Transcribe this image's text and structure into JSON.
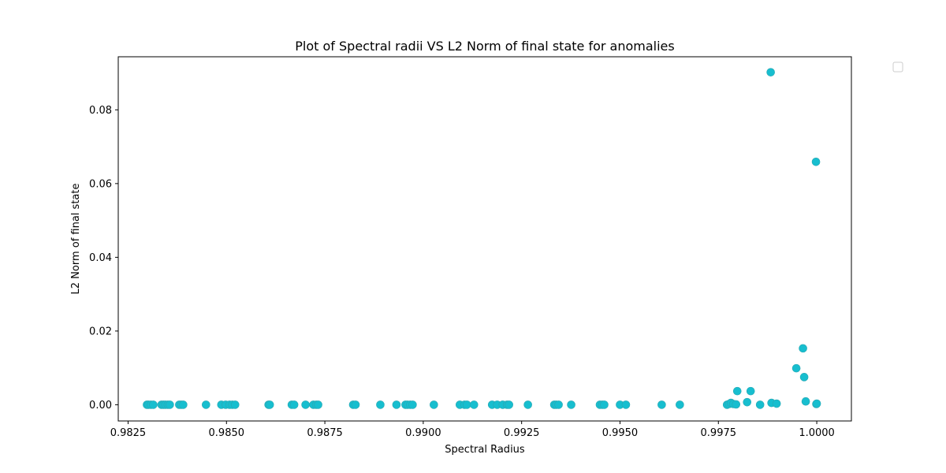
{
  "chart_data": {
    "type": "scatter",
    "title": "Plot of Spectral radii VS L2 Norm of final state for anomalies",
    "xlabel": "Spectral Radius",
    "ylabel": "L2 Norm of final state",
    "xlim": [
      0.98225,
      1.00088
    ],
    "ylim": [
      -0.0044,
      0.0944
    ],
    "xticks": [
      0.9825,
      0.985,
      0.9875,
      0.99,
      0.9925,
      0.995,
      0.9975,
      1.0
    ],
    "xtick_labels": [
      "0.9825",
      "0.9850",
      "0.9875",
      "0.9900",
      "0.9925",
      "0.9950",
      "0.9975",
      "1.0000"
    ],
    "yticks": [
      0.0,
      0.02,
      0.04,
      0.06,
      0.08
    ],
    "ytick_labels": [
      "0.00",
      "0.02",
      "0.04",
      "0.06",
      "0.08"
    ],
    "grid": false,
    "legend": "top-right (empty)",
    "marker_color": "#17becf",
    "points": [
      {
        "x": 0.98298,
        "y": 0.0
      },
      {
        "x": 0.98302,
        "y": 0.0
      },
      {
        "x": 0.98308,
        "y": 0.0
      },
      {
        "x": 0.98314,
        "y": 0.0
      },
      {
        "x": 0.98335,
        "y": 0.0
      },
      {
        "x": 0.9834,
        "y": 0.0
      },
      {
        "x": 0.98345,
        "y": 0.0
      },
      {
        "x": 0.98351,
        "y": 0.0
      },
      {
        "x": 0.98356,
        "y": 0.0
      },
      {
        "x": 0.9838,
        "y": 0.0
      },
      {
        "x": 0.98385,
        "y": 0.0
      },
      {
        "x": 0.9839,
        "y": 0.0
      },
      {
        "x": 0.98448,
        "y": 0.0
      },
      {
        "x": 0.98487,
        "y": 0.0
      },
      {
        "x": 0.98498,
        "y": 0.0
      },
      {
        "x": 0.98508,
        "y": 0.0
      },
      {
        "x": 0.98515,
        "y": 0.0
      },
      {
        "x": 0.98522,
        "y": 0.0
      },
      {
        "x": 0.98607,
        "y": 0.0
      },
      {
        "x": 0.9861,
        "y": 0.0
      },
      {
        "x": 0.98666,
        "y": 0.0
      },
      {
        "x": 0.98672,
        "y": 0.0
      },
      {
        "x": 0.98701,
        "y": 0.0
      },
      {
        "x": 0.98721,
        "y": 0.0
      },
      {
        "x": 0.98728,
        "y": 0.0
      },
      {
        "x": 0.98733,
        "y": 0.0
      },
      {
        "x": 0.98822,
        "y": 0.0
      },
      {
        "x": 0.98828,
        "y": 0.0
      },
      {
        "x": 0.98891,
        "y": 0.0
      },
      {
        "x": 0.98932,
        "y": 0.0
      },
      {
        "x": 0.98955,
        "y": 0.0
      },
      {
        "x": 0.9896,
        "y": 0.0
      },
      {
        "x": 0.98967,
        "y": 0.0
      },
      {
        "x": 0.98973,
        "y": 0.0
      },
      {
        "x": 0.99027,
        "y": 0.0
      },
      {
        "x": 0.99093,
        "y": 0.0
      },
      {
        "x": 0.99105,
        "y": 0.0
      },
      {
        "x": 0.99111,
        "y": 0.0
      },
      {
        "x": 0.99129,
        "y": 0.0
      },
      {
        "x": 0.99175,
        "y": 0.0
      },
      {
        "x": 0.99188,
        "y": 0.0
      },
      {
        "x": 0.99202,
        "y": 0.0
      },
      {
        "x": 0.99213,
        "y": 0.0
      },
      {
        "x": 0.99218,
        "y": 0.0
      },
      {
        "x": 0.99266,
        "y": 0.0
      },
      {
        "x": 0.99333,
        "y": 0.0
      },
      {
        "x": 0.99338,
        "y": 0.0
      },
      {
        "x": 0.99344,
        "y": 0.0
      },
      {
        "x": 0.99376,
        "y": 0.0
      },
      {
        "x": 0.99449,
        "y": 0.0
      },
      {
        "x": 0.99455,
        "y": 0.0
      },
      {
        "x": 0.9946,
        "y": 0.0
      },
      {
        "x": 0.995,
        "y": 0.0
      },
      {
        "x": 0.99515,
        "y": 0.0
      },
      {
        "x": 0.99606,
        "y": 0.0
      },
      {
        "x": 0.99652,
        "y": 0.0
      },
      {
        "x": 0.99772,
        "y": 0.0
      },
      {
        "x": 0.99777,
        "y": 0.0002
      },
      {
        "x": 0.99782,
        "y": 0.0005
      },
      {
        "x": 0.99788,
        "y": 0.0002
      },
      {
        "x": 0.99795,
        "y": 0.0001
      },
      {
        "x": 0.99798,
        "y": 0.0037
      },
      {
        "x": 0.99823,
        "y": 0.0007
      },
      {
        "x": 0.99832,
        "y": 0.0037
      },
      {
        "x": 0.99856,
        "y": 0.0
      },
      {
        "x": 0.99883,
        "y": 0.0902
      },
      {
        "x": 0.99885,
        "y": 0.0005
      },
      {
        "x": 0.99898,
        "y": 0.0003
      },
      {
        "x": 0.99948,
        "y": 0.0099
      },
      {
        "x": 0.99965,
        "y": 0.0153
      },
      {
        "x": 0.99968,
        "y": 0.0075
      },
      {
        "x": 0.99972,
        "y": 0.0009
      },
      {
        "x": 0.99998,
        "y": 0.0659
      },
      {
        "x": 0.99999,
        "y": 0.0002
      },
      {
        "x": 1.0,
        "y": 0.0003
      }
    ]
  }
}
